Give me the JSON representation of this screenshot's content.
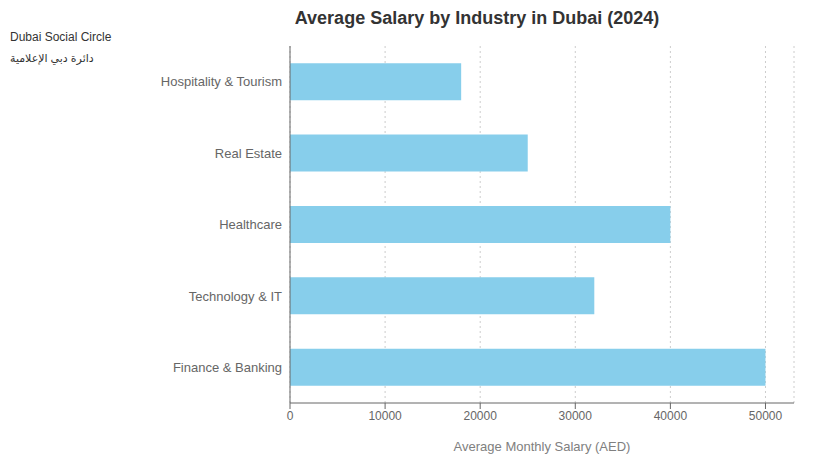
{
  "chart_data": {
    "type": "bar",
    "title": "Average Salary by Industry in Dubai (2024)",
    "xlabel": "Average Monthly Salary (AED)",
    "categories": [
      "Finance & Banking",
      "Technology & IT",
      "Healthcare",
      "Real Estate",
      "Hospitality & Tourism"
    ],
    "values": [
      50000,
      32000,
      40000,
      25000,
      18000
    ],
    "color": "#87CEEB",
    "orientation": "horizontal",
    "xlim": [
      0,
      53000
    ],
    "xticks": [
      0,
      10000,
      20000,
      30000,
      40000,
      50000
    ],
    "grid": true,
    "annotations": [
      "Dubai Social Circle",
      "دائرة دبي الإعلامية"
    ]
  }
}
